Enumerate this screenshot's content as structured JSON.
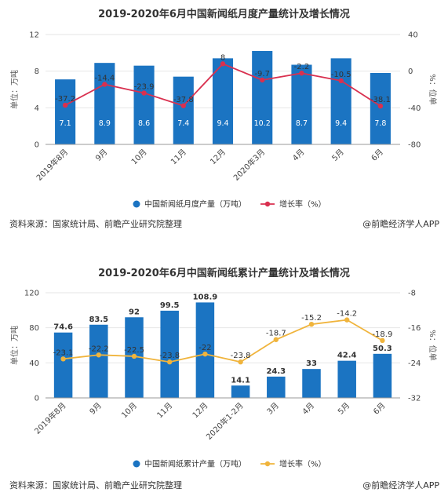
{
  "colors": {
    "bar": "#1b74c2",
    "line1": "#d9304f",
    "line2": "#f0b43c"
  },
  "chart_data": [
    {
      "type": "bar",
      "title": "2019-2020年6月中国新闻纸月度产量统计及增长情况",
      "ylabel": "单位：万吨",
      "y2label": "%：位单",
      "categories": [
        "2019年8月",
        "9月",
        "10月",
        "11月",
        "12月",
        "2020年3月",
        "4月",
        "5月",
        "6月"
      ],
      "ylim": [
        0,
        12
      ],
      "yticks": [
        0,
        4,
        8,
        12
      ],
      "y2lim": [
        -80,
        40
      ],
      "y2ticks": [
        -80,
        -40,
        0,
        40
      ],
      "series": [
        {
          "name": "中国新闻纸月度产量（万吨）",
          "kind": "bar",
          "values": [
            7.1,
            8.9,
            8.6,
            7.4,
            9.4,
            10.2,
            8.7,
            9.4,
            7.8
          ]
        },
        {
          "name": "增长率（%）",
          "kind": "line",
          "axis": "right",
          "values": [
            -37.2,
            -14.4,
            -23.9,
            -37.8,
            8,
            -9.7,
            -2.2,
            -10.5,
            -38.1
          ]
        }
      ],
      "legend": "bottom"
    },
    {
      "type": "bar",
      "title": "2019-2020年6月中国新闻纸累计产量统计及增长情况",
      "ylabel": "单位：万吨",
      "y2label": "%：位单",
      "categories": [
        "2019年8月",
        "9月",
        "10月",
        "11月",
        "12月",
        "2020年1-2月",
        "3月",
        "4月",
        "5月",
        "6月"
      ],
      "ylim": [
        0,
        120
      ],
      "yticks": [
        0,
        40,
        80,
        120
      ],
      "y2lim": [
        -32,
        -8
      ],
      "y2ticks": [
        -32,
        -24,
        -16,
        -8
      ],
      "series": [
        {
          "name": "中国新闻纸累计产量（万吨）",
          "kind": "bar",
          "values": [
            74.6,
            83.5,
            92,
            99.5,
            108.9,
            14.1,
            24.3,
            33,
            42.4,
            50.3
          ]
        },
        {
          "name": "增长率（%）",
          "kind": "line",
          "axis": "right",
          "values": [
            -23.1,
            -22.2,
            -22.5,
            -23.8,
            -22,
            -23.8,
            -18.7,
            -15.2,
            -14.2,
            -18.9
          ]
        }
      ],
      "legend": "bottom"
    }
  ],
  "sources": [
    {
      "text": "资料来源：国家统计局、前瞻产业研究院整理",
      "credit": "@前瞻经济学人APP"
    },
    {
      "text": "资料来源：国家统计局、前瞻产业研究院整理",
      "credit": "@前瞻经济学人APP"
    }
  ]
}
